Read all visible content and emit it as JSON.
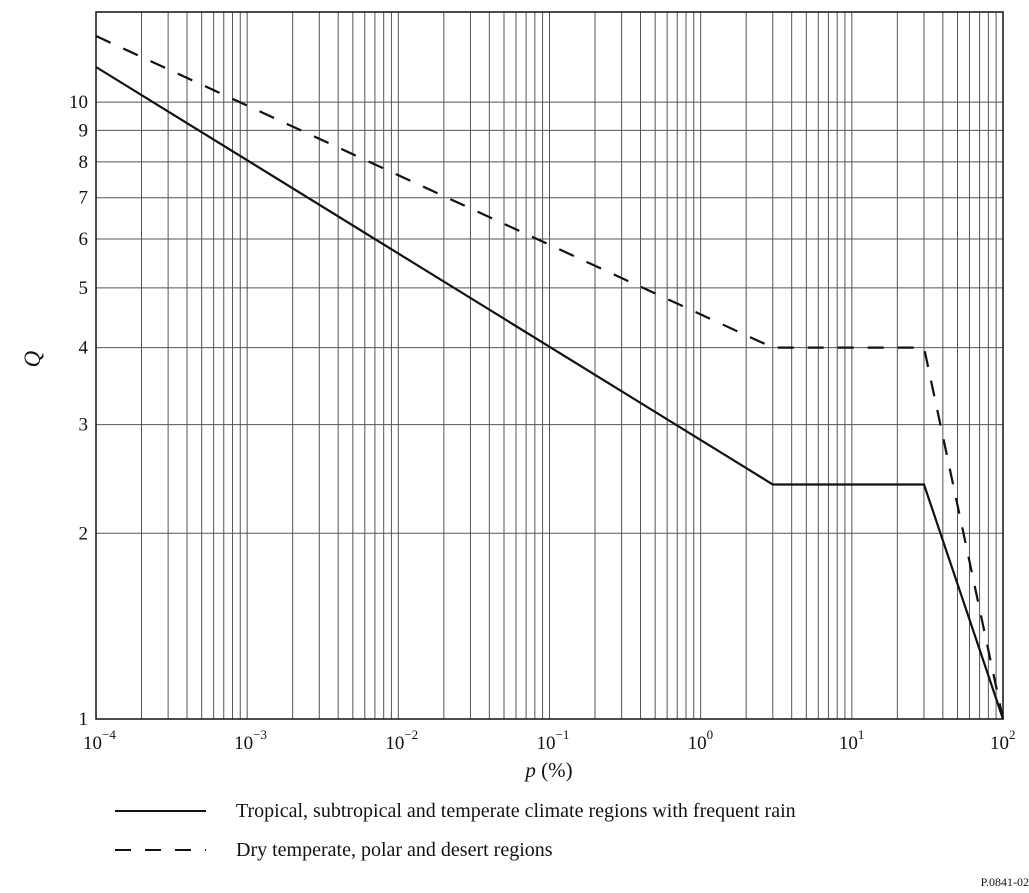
{
  "chart_data": {
    "type": "line",
    "title": "",
    "xlabel_var": "p",
    "xlabel_unit": " (%)",
    "ylabel": "Q",
    "x_scale": "log",
    "y_scale": "log",
    "xlim": [
      0.0001,
      100
    ],
    "ylim": [
      1,
      14
    ],
    "grid": true,
    "x_ticks": [
      {
        "base": "10",
        "exp": "−4"
      },
      {
        "base": "10",
        "exp": "−3"
      },
      {
        "base": "10",
        "exp": "−2"
      },
      {
        "base": "10",
        "exp": "−1"
      },
      {
        "base": "10",
        "exp": "0"
      },
      {
        "base": "10",
        "exp": "1"
      },
      {
        "base": "10",
        "exp": "2"
      }
    ],
    "y_ticks": [
      "1",
      "2",
      "3",
      "4",
      "5",
      "6",
      "7",
      "8",
      "9",
      "10"
    ],
    "series": [
      {
        "name": "Tropical, subtropical and temperate climate regions with frequent rain",
        "style": "solid",
        "x": [
          0.0001,
          3,
          30,
          100
        ],
        "y": [
          11.4,
          2.4,
          2.4,
          1.0
        ]
      },
      {
        "name": "Dry temperate, polar and desert regions",
        "style": "dashed",
        "x": [
          0.0001,
          3,
          30,
          100
        ],
        "y": [
          12.8,
          4.0,
          4.0,
          1.0
        ]
      }
    ],
    "legend_position": "bottom",
    "figure_id": "P.0841-02"
  }
}
